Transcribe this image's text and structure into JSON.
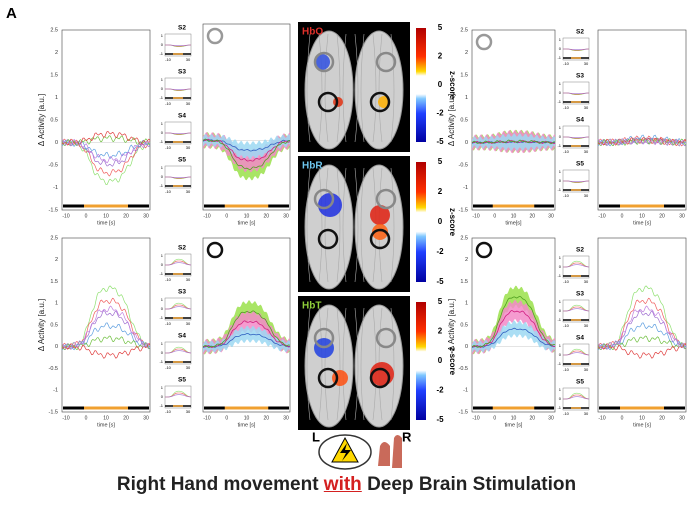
{
  "panel_label": "A",
  "plots": [
    {
      "ylabel": "Δ Activity [a.u.]",
      "yticks": [
        "2.5",
        "2",
        "1.5",
        "1",
        "0.5",
        "0",
        "-0.5",
        "-1",
        "-1.5"
      ],
      "xticks": [
        "-10",
        "0",
        "10",
        "20",
        "30"
      ],
      "xlabel": "time [s]"
    },
    {
      "xticks": [
        "-10",
        "0",
        "10",
        "20",
        "30"
      ],
      "xlabel": "time [s]"
    },
    {
      "ylabel": "Δ Activity [a.u.]",
      "yticks": [
        "2.5",
        "2",
        "1.5",
        "1",
        "0.5",
        "0",
        "-0.5",
        "-1",
        "-1.5"
      ],
      "xticks": [
        "-10",
        "0",
        "10",
        "20",
        "30"
      ],
      "xlabel": "time[s]"
    },
    {
      "xticks": [
        "-10",
        "0",
        "10",
        "20",
        "30"
      ],
      "xlabel": "time [s]"
    },
    {
      "ylabel": "Δ Activity [a.u.]",
      "yticks": [
        "2.5",
        "2",
        "1.5",
        "1",
        "0.5",
        "0",
        "-0.5",
        "-1",
        "-1.5"
      ],
      "xticks": [
        "-10",
        "0",
        "10",
        "20",
        "30"
      ],
      "xlabel": "time [s]"
    },
    {
      "xticks": [
        "-10",
        "0",
        "10",
        "20",
        "30"
      ],
      "xlabel": "time [s]"
    },
    {
      "ylabel": "Δ Activity [a.u.]",
      "yticks": [
        "2.5",
        "2",
        "1.5",
        "1",
        "0.5",
        "0",
        "-0.5",
        "-1",
        "-1.5"
      ],
      "xticks": [
        "-10",
        "0",
        "10",
        "20",
        "30"
      ],
      "xlabel": "time [s]"
    },
    {
      "xticks": [
        "-10",
        "0",
        "10",
        "20",
        "30"
      ],
      "xlabel": "time [s]"
    }
  ],
  "subplot_groups": [
    [
      {
        "label": "S2",
        "yticks": [
          "1",
          "0",
          "-1"
        ],
        "xticks": [
          "-10",
          "30"
        ]
      },
      {
        "label": "S3",
        "yticks": [
          "1",
          "0",
          "-1"
        ],
        "xticks": [
          "-10",
          "30"
        ]
      },
      {
        "label": "S4",
        "yticks": [
          "1",
          "0",
          "-1"
        ],
        "xticks": [
          "-10",
          "30"
        ]
      },
      {
        "label": "S5",
        "yticks": [
          "1",
          "0",
          "-1"
        ],
        "xticks": [
          "-10",
          "30"
        ]
      }
    ],
    [
      {
        "label": "S2",
        "yticks": [
          "1",
          "0",
          "-1"
        ],
        "xticks": [
          "-10",
          "30"
        ]
      },
      {
        "label": "S3",
        "yticks": [
          "1",
          "0",
          "-1"
        ],
        "xticks": [
          "-10",
          "30"
        ]
      },
      {
        "label": "S4",
        "yticks": [
          "1",
          "0",
          "-1"
        ],
        "xticks": [
          "-10",
          "30"
        ]
      },
      {
        "label": "S5",
        "yticks": [
          "1",
          "0",
          "-1"
        ],
        "xticks": [
          "-10",
          "30"
        ]
      }
    ],
    [
      {
        "label": "S2",
        "yticks": [
          "1",
          "0",
          "-1"
        ],
        "xticks": [
          "-10",
          "30"
        ]
      },
      {
        "label": "S3",
        "yticks": [
          "1",
          "0",
          "-1"
        ],
        "xticks": [
          "-10",
          "30"
        ]
      },
      {
        "label": "S4",
        "yticks": [
          "1",
          "0",
          "-1"
        ],
        "xticks": [
          "-10",
          "30"
        ]
      },
      {
        "label": "S5",
        "yticks": [
          "1",
          "0",
          "-1"
        ],
        "xticks": [
          "-10",
          "30"
        ]
      }
    ],
    [
      {
        "label": "S2",
        "yticks": [
          "1",
          "0",
          "-1"
        ],
        "xticks": [
          "-10",
          "30"
        ]
      },
      {
        "label": "S3",
        "yticks": [
          "1",
          "0",
          "-1"
        ],
        "xticks": [
          "-10",
          "30"
        ]
      },
      {
        "label": "S4",
        "yticks": [
          "1",
          "0",
          "-1"
        ],
        "xticks": [
          "-10",
          "30"
        ]
      },
      {
        "label": "S5",
        "yticks": [
          "1",
          "0",
          "-1"
        ],
        "xticks": [
          "-10",
          "30"
        ]
      }
    ]
  ],
  "brain_maps": [
    {
      "label": "HbO",
      "color": "#e0302a",
      "colorbar_ticks": [
        "5",
        "2",
        "0",
        "-2",
        "-5"
      ],
      "colorbar_title": "z-score"
    },
    {
      "label": "HbR",
      "color": "#6ec6ee",
      "colorbar_ticks": [
        "5",
        "2",
        "0",
        "-2",
        "-5"
      ],
      "colorbar_title": "z-score"
    },
    {
      "label": "HbT",
      "color": "#8fcf3a",
      "colorbar_ticks": [
        "5",
        "2",
        "0",
        "-2",
        "-5"
      ],
      "colorbar_title": "z-score"
    }
  ],
  "hemisphere_labels": [
    "L",
    "R"
  ],
  "caption": {
    "before": "Right Hand movement ",
    "emphasis": "with",
    "after": " Deep Brain Stimulation"
  }
}
